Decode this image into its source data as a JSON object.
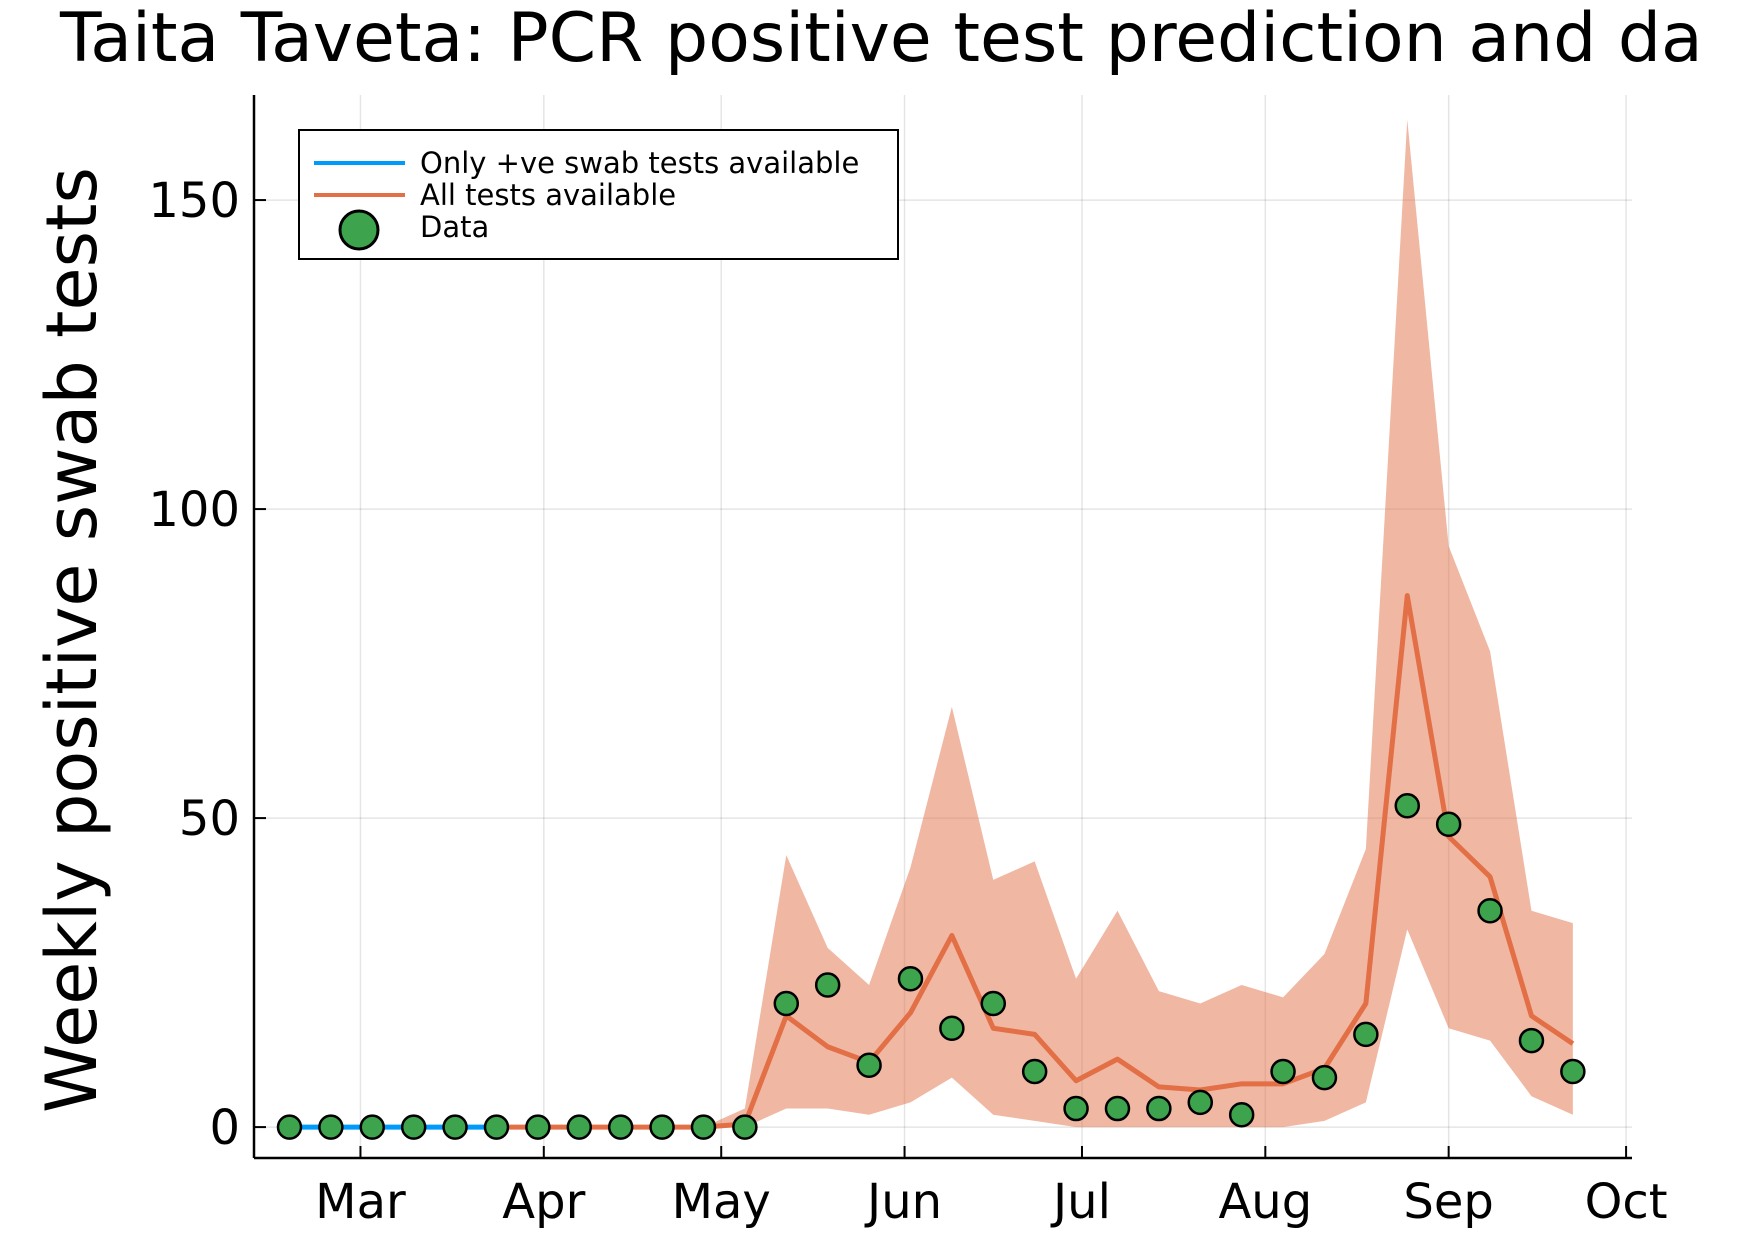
{
  "chart_data": {
    "type": "line",
    "title": "Taita Taveta: PCR positive test prediction and da",
    "xlabel": "",
    "ylabel": "Weekly positive swab tests",
    "xlim": [
      "2020-02-12",
      "2020-10-02"
    ],
    "ylim": [
      -5,
      167
    ],
    "grid": true,
    "legend_position": "top-left",
    "x_ticks": [
      {
        "label": "Mar",
        "date": "2020-03-01"
      },
      {
        "label": "Apr",
        "date": "2020-04-01"
      },
      {
        "label": "May",
        "date": "2020-05-01"
      },
      {
        "label": "Jun",
        "date": "2020-06-01"
      },
      {
        "label": "Jul",
        "date": "2020-07-01"
      },
      {
        "label": "Aug",
        "date": "2020-08-01"
      },
      {
        "label": "Sep",
        "date": "2020-09-01"
      },
      {
        "label": "Oct",
        "date": "2020-10-01"
      }
    ],
    "y_ticks": [
      0,
      50,
      100,
      150
    ],
    "series": [
      {
        "name": "Only +ve swab tests available",
        "color": "#009AFA",
        "type": "line",
        "x": [
          "2020-02-18",
          "2020-02-25",
          "2020-03-03",
          "2020-03-10",
          "2020-03-17",
          "2020-03-24"
        ],
        "y": [
          0,
          0,
          0,
          0,
          0,
          0
        ]
      },
      {
        "name": "All tests available",
        "color": "#E26F46",
        "type": "line",
        "x": [
          "2020-03-24",
          "2020-03-31",
          "2020-04-07",
          "2020-04-14",
          "2020-04-21",
          "2020-04-28",
          "2020-05-05",
          "2020-05-12",
          "2020-05-19",
          "2020-05-26",
          "2020-06-02",
          "2020-06-09",
          "2020-06-16",
          "2020-06-23",
          "2020-06-30",
          "2020-07-07",
          "2020-07-14",
          "2020-07-21",
          "2020-07-28",
          "2020-08-04",
          "2020-08-11",
          "2020-08-18",
          "2020-08-25",
          "2020-09-01",
          "2020-09-08",
          "2020-09-15",
          "2020-09-22"
        ],
        "y": [
          0,
          0,
          0,
          0,
          0,
          0,
          0.5,
          18,
          13,
          10.5,
          18.5,
          31,
          16,
          15,
          7.5,
          11,
          6.5,
          6,
          7,
          7,
          9.5,
          20,
          86,
          47,
          40.5,
          18,
          13.5
        ],
        "band_lower": [
          0,
          0,
          0,
          0,
          0,
          0,
          0,
          3,
          3,
          2,
          4,
          8,
          2,
          1,
          0,
          0,
          0,
          0,
          0,
          0,
          1,
          4,
          32,
          16,
          14,
          5,
          2
        ],
        "band_upper": [
          0,
          0,
          0,
          0,
          0,
          0,
          3,
          44,
          29,
          23,
          42,
          68,
          40,
          43,
          24,
          35,
          22,
          20,
          23,
          21,
          28,
          45,
          163,
          94,
          77,
          35,
          33
        ]
      },
      {
        "name": "Data",
        "color": "#3DA44D",
        "type": "scatter",
        "x": [
          "2020-02-18",
          "2020-02-25",
          "2020-03-03",
          "2020-03-10",
          "2020-03-17",
          "2020-03-24",
          "2020-03-31",
          "2020-04-07",
          "2020-04-14",
          "2020-04-21",
          "2020-04-28",
          "2020-05-05",
          "2020-05-12",
          "2020-05-19",
          "2020-05-26",
          "2020-06-02",
          "2020-06-09",
          "2020-06-16",
          "2020-06-23",
          "2020-06-30",
          "2020-07-07",
          "2020-07-14",
          "2020-07-21",
          "2020-07-28",
          "2020-08-04",
          "2020-08-11",
          "2020-08-18",
          "2020-08-25",
          "2020-09-01",
          "2020-09-08",
          "2020-09-15",
          "2020-09-22"
        ],
        "y": [
          0,
          0,
          0,
          0,
          0,
          0,
          0,
          0,
          0,
          0,
          0,
          0,
          20,
          23,
          10,
          24,
          16,
          20,
          9,
          3,
          3,
          3,
          4,
          2,
          9,
          8,
          15,
          52,
          49,
          35,
          14,
          9
        ]
      }
    ]
  }
}
